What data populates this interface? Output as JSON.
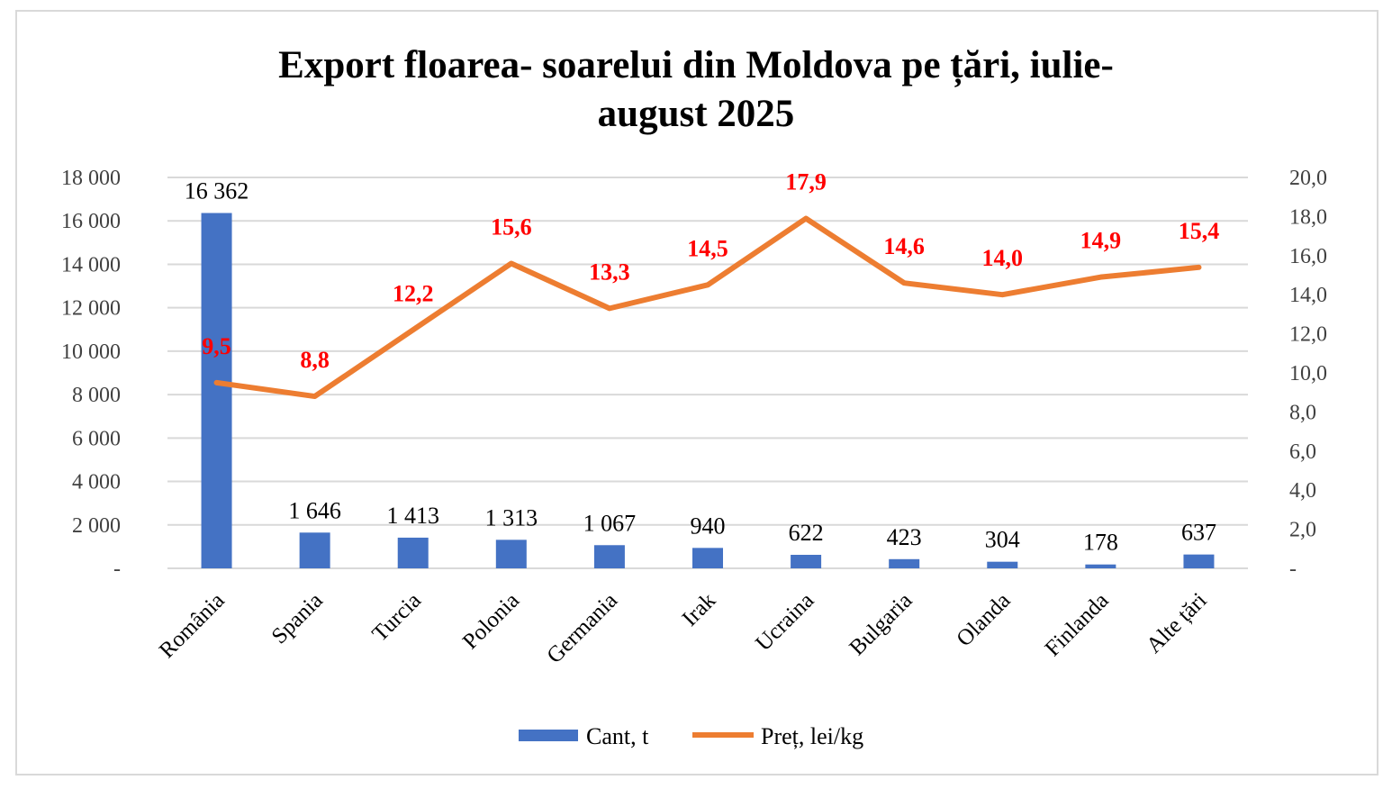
{
  "chart_data": {
    "type": "bar",
    "title": "Export floarea- soarelui din Moldova pe țări, iulie-august 2025",
    "title_lines": [
      "Export floarea- soarelui din Moldova pe țări, iulie-",
      "august 2025"
    ],
    "categories": [
      "România",
      "Spania",
      "Turcia",
      "Polonia",
      "Germania",
      "Irak",
      "Ucraina",
      "Bulgaria",
      "Olanda",
      "Finlanda",
      "Alte țări"
    ],
    "series": [
      {
        "name": "Cant, t",
        "type": "bar",
        "axis": "left",
        "color": "#4472c4",
        "values": [
          16362,
          1646,
          1413,
          1313,
          1067,
          940,
          622,
          423,
          304,
          178,
          637
        ],
        "labels": [
          "16 362",
          "1 646",
          "1 413",
          "1 313",
          "1 067",
          "940",
          "622",
          "423",
          "304",
          "178",
          "637"
        ]
      },
      {
        "name": "Preț, lei/kg",
        "type": "line",
        "axis": "right",
        "color": "#ed7d31",
        "label_color": "#ff0000",
        "values": [
          9.5,
          8.8,
          12.2,
          15.6,
          13.3,
          14.5,
          17.9,
          14.6,
          14.0,
          14.9,
          15.4
        ],
        "labels": [
          "9,5",
          "8,8",
          "12,2",
          "15,6",
          "13,3",
          "14,5",
          "17,9",
          "14,6",
          "14,0",
          "14,9",
          "15,4"
        ]
      }
    ],
    "y_left": {
      "ylim": [
        0,
        18000
      ],
      "ticks": [
        "-",
        "2 000",
        "4 000",
        "6 000",
        "8 000",
        "10 000",
        "12 000",
        "14 000",
        "16 000",
        "18 000"
      ]
    },
    "y_right": {
      "ylim": [
        0,
        20
      ],
      "ticks": [
        "-",
        "2,0",
        "4,0",
        "6,0",
        "8,0",
        "10,0",
        "12,0",
        "14,0",
        "16,0",
        "18,0",
        "20,0"
      ]
    },
    "grid": true,
    "legend": "bottom",
    "gridline_color": "#d9d9d9"
  }
}
